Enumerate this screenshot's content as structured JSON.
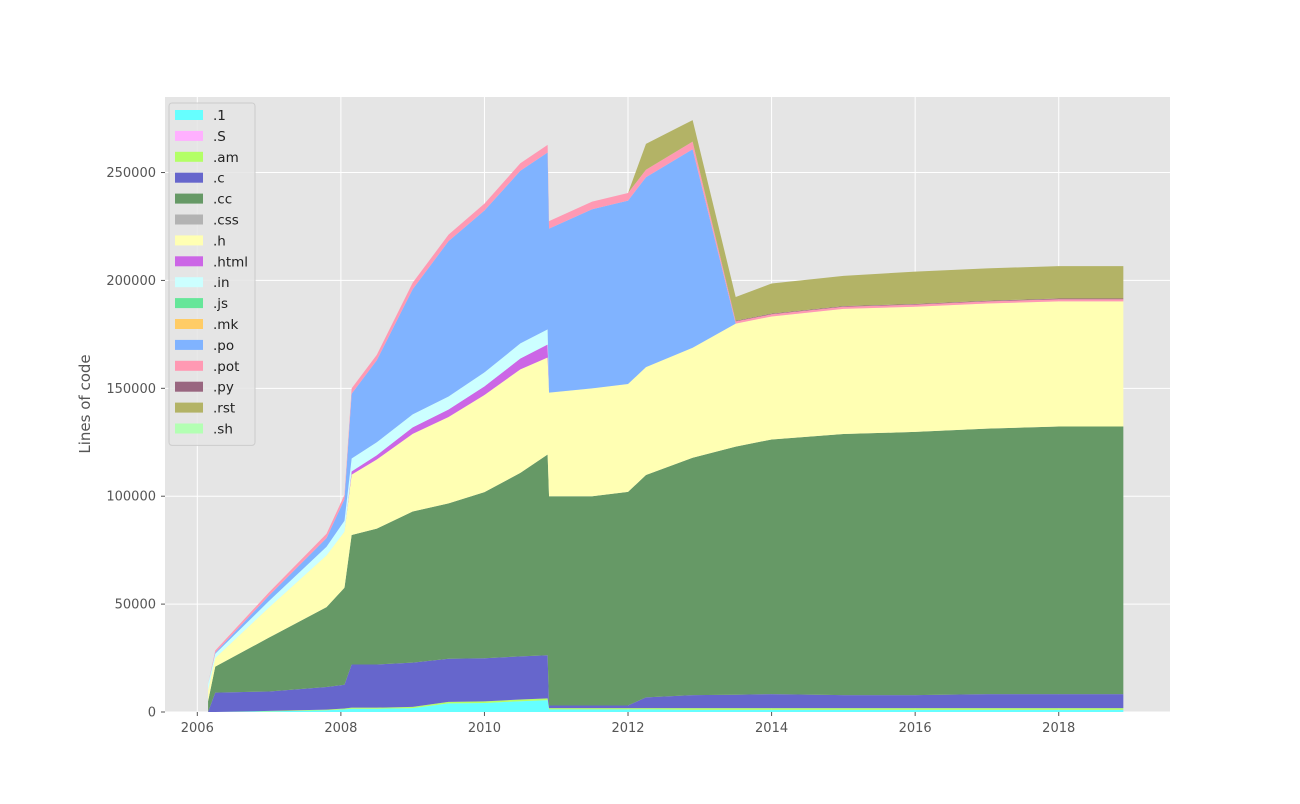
{
  "chart_data": {
    "type": "area",
    "stacked": true,
    "title": "",
    "xlabel": "",
    "ylabel": "Lines of code",
    "xlim": [
      2005.55,
      2019.55
    ],
    "ylim": [
      0,
      285000
    ],
    "x_ticks": [
      2006,
      2008,
      2010,
      2012,
      2014,
      2016,
      2018
    ],
    "y_ticks": [
      0,
      50000,
      100000,
      150000,
      200000,
      250000
    ],
    "grid": true,
    "legend_position": "top-left",
    "x": [
      2006.15,
      2006.25,
      2007.0,
      2007.8,
      2008.05,
      2008.15,
      2008.5,
      2009.0,
      2009.5,
      2010.0,
      2010.5,
      2010.88,
      2010.9,
      2011.5,
      2012.0,
      2012.25,
      2012.9,
      2013.5,
      2014.0,
      2015.0,
      2016.0,
      2017.0,
      2018.0,
      2018.9
    ],
    "series": [
      {
        "name": ".1",
        "color": "#66ffff",
        "values": [
          0,
          0,
          300,
          800,
          1200,
          1500,
          1500,
          1800,
          4000,
          4200,
          5000,
          5500,
          1200,
          1200,
          1200,
          1200,
          1000,
          1000,
          1000,
          1000,
          1000,
          1000,
          1000,
          1000
        ]
      },
      {
        "name": ".S",
        "color": "#ffb0ff",
        "values": [
          0,
          0,
          0,
          0,
          0,
          0,
          0,
          0,
          0,
          0,
          0,
          0,
          0,
          0,
          0,
          0,
          0,
          0,
          0,
          0,
          0,
          0,
          0,
          0
        ]
      },
      {
        "name": ".am",
        "color": "#b3ff66",
        "values": [
          0,
          0,
          200,
          300,
          400,
          500,
          500,
          600,
          700,
          700,
          800,
          800,
          600,
          600,
          600,
          600,
          800,
          800,
          800,
          800,
          800,
          800,
          800,
          800
        ]
      },
      {
        "name": ".c",
        "color": "#6666cc",
        "values": [
          0,
          9000,
          9000,
          10500,
          11000,
          20000,
          20000,
          20500,
          20000,
          20000,
          20000,
          20000,
          1200,
          1200,
          1200,
          5000,
          6000,
          6200,
          6500,
          6000,
          6000,
          6500,
          6500,
          6500
        ]
      },
      {
        "name": ".cc",
        "color": "#669966",
        "values": [
          5000,
          12000,
          25000,
          37000,
          45000,
          60000,
          63000,
          70000,
          72000,
          77000,
          85000,
          93000,
          97000,
          97000,
          99000,
          103000,
          110000,
          115000,
          118000,
          121000,
          122000,
          123000,
          124000,
          124000
        ]
      },
      {
        "name": ".css",
        "color": "#b3b3b3",
        "values": [
          0,
          0,
          0,
          0,
          0,
          0,
          0,
          0,
          0,
          0,
          0,
          0,
          0,
          0,
          0,
          0,
          0,
          0,
          0,
          0,
          0,
          0,
          0,
          0
        ]
      },
      {
        "name": ".h",
        "color": "#ffffb3",
        "values": [
          5000,
          4000,
          14000,
          24000,
          26000,
          28000,
          32000,
          36000,
          40000,
          45000,
          48000,
          45000,
          48000,
          50000,
          50000,
          50000,
          51000,
          57000,
          57000,
          58000,
          58000,
          58000,
          58000,
          58000
        ]
      },
      {
        "name": ".html",
        "color": "#cc66e6",
        "values": [
          0,
          0,
          0,
          0,
          0,
          1500,
          2000,
          3000,
          3500,
          4000,
          5000,
          6000,
          0,
          0,
          0,
          0,
          0,
          0,
          0,
          0,
          0,
          0,
          0,
          0
        ]
      },
      {
        "name": ".in",
        "color": "#ccffff",
        "values": [
          3000,
          2000,
          3000,
          4000,
          5000,
          6000,
          6000,
          6000,
          6000,
          6500,
          7000,
          7000,
          0,
          0,
          0,
          0,
          0,
          0,
          0,
          0,
          0,
          0,
          0,
          0
        ]
      },
      {
        "name": ".js",
        "color": "#66e699",
        "values": [
          0,
          0,
          0,
          0,
          0,
          0,
          0,
          0,
          0,
          0,
          0,
          0,
          0,
          0,
          0,
          0,
          0,
          0,
          0,
          0,
          0,
          0,
          0,
          0
        ]
      },
      {
        "name": ".mk",
        "color": "#ffcc66",
        "values": [
          0,
          0,
          0,
          0,
          0,
          0,
          0,
          0,
          0,
          0,
          0,
          0,
          0,
          0,
          0,
          0,
          0,
          0,
          0,
          0,
          0,
          0,
          0,
          0
        ]
      },
      {
        "name": ".po",
        "color": "#80b3ff",
        "values": [
          0,
          500,
          2500,
          4000,
          10000,
          30000,
          38000,
          58000,
          72000,
          75000,
          80000,
          82000,
          76000,
          83000,
          85000,
          88000,
          92000,
          0,
          0,
          0,
          0,
          0,
          0,
          0
        ]
      },
      {
        "name": ".pot",
        "color": "#ff99b3",
        "values": [
          0,
          1000,
          1500,
          2000,
          2000,
          2500,
          2500,
          3000,
          3000,
          3200,
          3500,
          3500,
          3500,
          3500,
          3500,
          3500,
          3500,
          1000,
          1000,
          1000,
          1000,
          1000,
          1000,
          1000
        ]
      },
      {
        "name": ".py",
        "color": "#996680",
        "values": [
          0,
          0,
          0,
          0,
          0,
          0,
          0,
          0,
          0,
          0,
          0,
          0,
          0,
          0,
          0,
          0,
          0,
          300,
          300,
          300,
          300,
          300,
          300,
          300
        ]
      },
      {
        "name": ".rst",
        "color": "#b3b366",
        "values": [
          0,
          0,
          0,
          0,
          0,
          0,
          0,
          0,
          0,
          0,
          0,
          0,
          0,
          0,
          0,
          12000,
          10000,
          11000,
          14000,
          14000,
          15000,
          15000,
          15000,
          15000
        ]
      },
      {
        "name": ".sh",
        "color": "#b3ffb3",
        "values": [
          0,
          0,
          0,
          0,
          0,
          0,
          0,
          0,
          0,
          0,
          0,
          0,
          0,
          0,
          0,
          0,
          0,
          0,
          0,
          0,
          0,
          0,
          0,
          0
        ]
      }
    ]
  }
}
